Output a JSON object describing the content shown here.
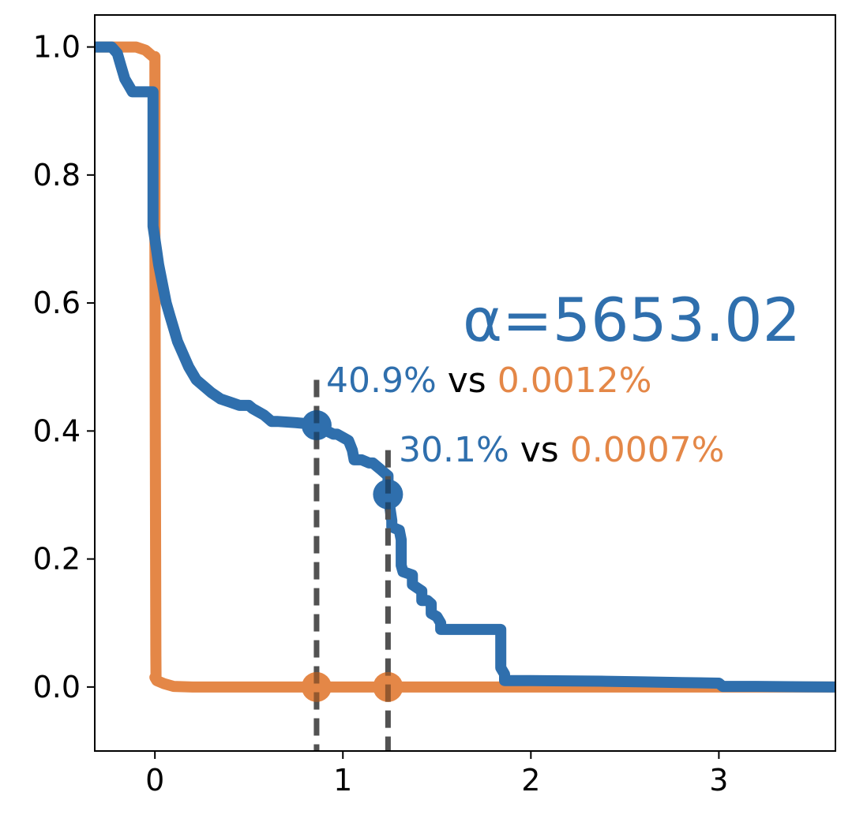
{
  "chart_data": {
    "type": "line",
    "title": "",
    "xlabel": "",
    "ylabel": "",
    "xlim": [
      -0.32,
      3.62
    ],
    "ylim": [
      -0.1,
      1.05
    ],
    "xticks": [
      0,
      1,
      2,
      3
    ],
    "xtick_labels": [
      "0",
      "1",
      "2",
      "3"
    ],
    "yticks": [
      0.0,
      0.2,
      0.4,
      0.6,
      0.8,
      1.0
    ],
    "ytick_labels": [
      "0.0",
      "0.2",
      "0.4",
      "0.6",
      "0.8",
      "1.0"
    ],
    "grid": false,
    "series": [
      {
        "color": "#2f6fad",
        "x": [
          -0.32,
          -0.23,
          -0.2,
          -0.18,
          -0.16,
          -0.14,
          -0.12,
          -0.09,
          -0.07,
          -0.06,
          -0.01,
          -0.01,
          0.0,
          0.01,
          0.02,
          0.04,
          0.06,
          0.08,
          0.1,
          0.12,
          0.15,
          0.18,
          0.22,
          0.26,
          0.3,
          0.35,
          0.4,
          0.45,
          0.5,
          0.52,
          0.55,
          0.58,
          0.6,
          0.62,
          0.65,
          0.75,
          0.86,
          0.88,
          0.95,
          0.97,
          1.0,
          1.03,
          1.05,
          1.06,
          1.1,
          1.14,
          1.16,
          1.18,
          1.2,
          1.22,
          1.24,
          1.24,
          1.25,
          1.26,
          1.26,
          1.3,
          1.31,
          1.31,
          1.32,
          1.37,
          1.37,
          1.42,
          1.42,
          1.45,
          1.47,
          1.47,
          1.5,
          1.52,
          1.52,
          1.55,
          1.55,
          1.7,
          1.84,
          1.84,
          1.86,
          1.86,
          2.0,
          2.4,
          2.6,
          2.8,
          3.0,
          3.02,
          3.2,
          3.62
        ],
        "y": [
          1.0,
          1.0,
          0.99,
          0.97,
          0.95,
          0.94,
          0.93,
          0.93,
          0.93,
          0.93,
          0.93,
          0.72,
          0.7,
          0.68,
          0.66,
          0.63,
          0.6,
          0.58,
          0.56,
          0.54,
          0.52,
          0.5,
          0.48,
          0.47,
          0.46,
          0.45,
          0.445,
          0.44,
          0.44,
          0.435,
          0.43,
          0.425,
          0.42,
          0.415,
          0.415,
          0.413,
          0.41,
          0.405,
          0.395,
          0.395,
          0.39,
          0.385,
          0.37,
          0.355,
          0.355,
          0.35,
          0.35,
          0.345,
          0.34,
          0.335,
          0.33,
          0.3,
          0.28,
          0.26,
          0.25,
          0.245,
          0.23,
          0.19,
          0.18,
          0.175,
          0.16,
          0.15,
          0.135,
          0.135,
          0.13,
          0.115,
          0.11,
          0.1,
          0.09,
          0.09,
          0.09,
          0.09,
          0.09,
          0.03,
          0.02,
          0.01,
          0.01,
          0.009,
          0.008,
          0.007,
          0.006,
          0.001,
          0.001,
          0.0
        ]
      },
      {
        "color": "#e48747",
        "x": [
          -0.32,
          -0.1,
          -0.05,
          -0.03,
          -0.01,
          0.0,
          0.0,
          0.001,
          0.002,
          0.004,
          0.005,
          0.006,
          0.0,
          0.01,
          0.05,
          0.1,
          0.2,
          1.0,
          2.0,
          3.0,
          3.62
        ],
        "y": [
          1.0,
          1.0,
          0.995,
          0.99,
          0.985,
          0.985,
          0.7,
          0.6,
          0.4,
          0.2,
          0.05,
          0.015,
          0.015,
          0.01,
          0.005,
          0.001,
          0.0,
          0.0,
          0.0,
          0.0,
          0.0
        ]
      }
    ],
    "vlines": [
      0.86,
      1.24
    ],
    "markers": [
      {
        "x": 0.86,
        "y": 0.409,
        "color": "#2f6fad"
      },
      {
        "x": 1.24,
        "y": 0.301,
        "color": "#2f6fad"
      },
      {
        "x": 0.86,
        "y": 0.0,
        "color": "#e48747"
      },
      {
        "x": 1.24,
        "y": 0.0,
        "color": "#e48747"
      }
    ],
    "annotations": {
      "alpha": "α=5653.02",
      "row1": {
        "blue": "40.9%",
        "vs": " vs ",
        "orange": "0.0012%"
      },
      "row2": {
        "blue": "30.1%",
        "vs": " vs ",
        "orange": "0.0007%"
      }
    },
    "colors": {
      "blue": "#2f6fad",
      "orange": "#e48747",
      "vline": "#7f7f7f"
    }
  }
}
